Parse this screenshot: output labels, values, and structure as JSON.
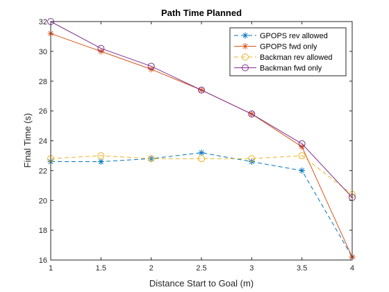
{
  "chart_data": {
    "type": "line",
    "title": "Path Time Planned",
    "xlabel": "Distance Start to Goal (m)",
    "ylabel": "Final Time (s)",
    "xlim": [
      1,
      4
    ],
    "ylim": [
      16,
      32
    ],
    "xticks": [
      1,
      1.5,
      2,
      2.5,
      3,
      3.5,
      4
    ],
    "yticks": [
      16,
      18,
      20,
      22,
      24,
      26,
      28,
      30,
      32
    ],
    "grid": false,
    "legend_position": "top-right",
    "x": [
      1,
      1.5,
      2,
      2.5,
      3,
      3.5,
      4
    ],
    "series": [
      {
        "name": "GPOPS rev allowed",
        "values": [
          22.6,
          22.6,
          22.8,
          23.2,
          22.6,
          22.0,
          16.2
        ],
        "color": "#0072BD",
        "marker": "asterisk",
        "dash": "dashed"
      },
      {
        "name": "GPOPS fwd only",
        "values": [
          31.2,
          30.0,
          28.8,
          27.4,
          25.8,
          23.6,
          16.2
        ],
        "color": "#D95319",
        "marker": "asterisk",
        "dash": "solid"
      },
      {
        "name": "Backman rev allowed",
        "values": [
          22.8,
          23.0,
          22.8,
          22.8,
          22.8,
          23.0,
          20.4
        ],
        "color": "#EDB120",
        "marker": "circle",
        "dash": "dashed"
      },
      {
        "name": "Backman fwd only",
        "values": [
          32.0,
          30.2,
          29.0,
          27.4,
          25.8,
          23.8,
          20.2
        ],
        "color": "#7E2F8E",
        "marker": "circle",
        "dash": "solid"
      }
    ]
  }
}
